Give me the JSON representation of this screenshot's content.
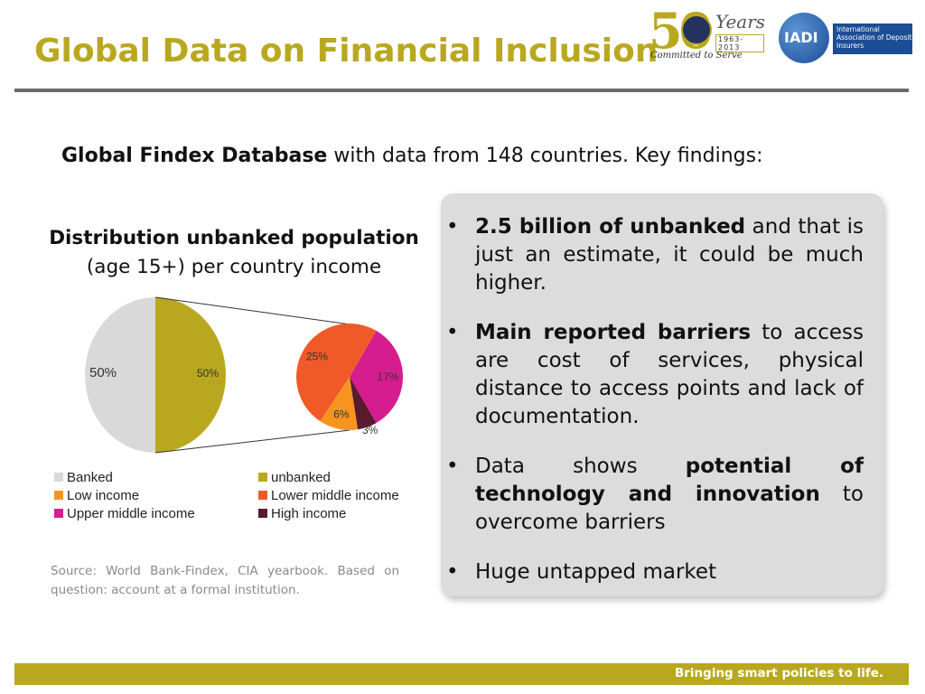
{
  "header": {
    "title": "Global Data on Financial Inclusion",
    "logo_50": {
      "number": "50",
      "years": "Years",
      "range": "1963-2013",
      "tagline": "Committed to Serve"
    },
    "logo_iadi": {
      "abbr": "IADI",
      "name": "International Association of Deposit Insurers"
    }
  },
  "intro": {
    "bold": "Global Findex Database",
    "rest": " with data from 148 countries. Key findings",
    "colon": ":"
  },
  "chart_data": {
    "type": "pie",
    "title": "Distribution unbanked population",
    "subtitle": "(age 15+) per country income",
    "main_pie": {
      "slices": [
        {
          "label": "Banked",
          "value": 50,
          "display": "50%",
          "color": "#d9d9d9"
        },
        {
          "label": "unbanked",
          "value": 50,
          "display": "50%",
          "color": "#b9a81f"
        }
      ]
    },
    "breakdown_pie": {
      "slices": [
        {
          "label": "Upper middle income",
          "value": 17,
          "display": "17%",
          "color": "#d61d8f"
        },
        {
          "label": "High income",
          "value": 3,
          "display": "3%",
          "color": "#5a1a2e"
        },
        {
          "label": "Low income",
          "value": 6,
          "display": "6%",
          "color": "#f7941d"
        },
        {
          "label": "Lower middle income",
          "value": 25,
          "display": "25%",
          "color": "#f05a28"
        }
      ]
    },
    "legend": [
      {
        "label": "Banked",
        "color": "#d9d9d9"
      },
      {
        "label": "unbanked",
        "color": "#b9a81f"
      },
      {
        "label": "Low income",
        "color": "#f7941d"
      },
      {
        "label": "Lower middle income",
        "color": "#f05a28"
      },
      {
        "label": "Upper middle income",
        "color": "#d61d8f"
      },
      {
        "label": "High income",
        "color": "#5a1a2e"
      }
    ]
  },
  "source": "Source: World Bank-Findex, CIA yearbook. Based on question: account at a formal institution.",
  "findings": [
    {
      "bold": "2.5 billion of unbanked",
      "rest": " and that is just an estimate, it could be much higher."
    },
    {
      "bold": "Main reported barriers",
      "rest": " to access are cost of services, physical distance to access points and lack of documentation."
    },
    {
      "pre": "Data shows ",
      "bold": "potential of technology and innovation",
      "rest": " to overcome barriers"
    },
    {
      "rest": "Huge untapped market"
    }
  ],
  "footer": {
    "tagline": "Bringing smart policies to life."
  }
}
